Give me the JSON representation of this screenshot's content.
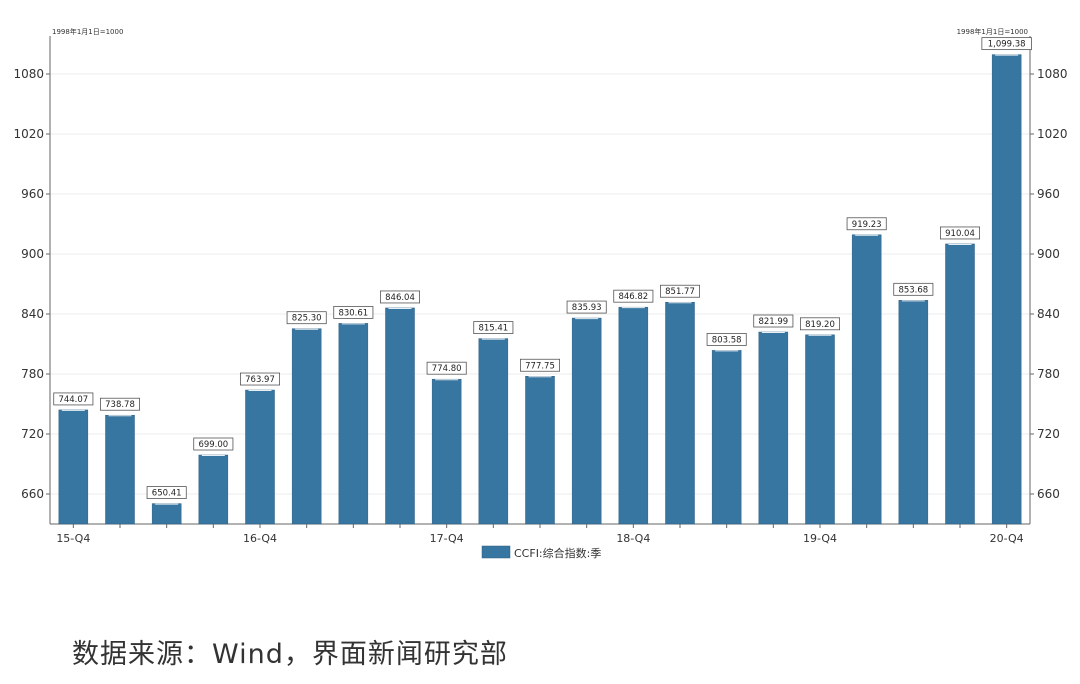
{
  "chart_data": {
    "type": "bar",
    "unit_left": "1998年1月1日=1000",
    "unit_right": "1998年1月1日=1000",
    "categories": [
      "15-Q4",
      "",
      "",
      "",
      "16-Q4",
      "",
      "",
      "",
      "17-Q4",
      "",
      "",
      "",
      "18-Q4",
      "",
      "",
      "",
      "19-Q4",
      "",
      "",
      "",
      "20-Q4"
    ],
    "series": [
      {
        "name": "CCFI:综合指数:季",
        "values": [
          744.07,
          738.78,
          650.41,
          699.0,
          763.97,
          825.3,
          830.61,
          846.04,
          774.8,
          815.41,
          777.75,
          835.93,
          846.82,
          851.77,
          803.58,
          821.99,
          819.2,
          919.23,
          853.68,
          910.04,
          1099.38
        ],
        "labels": [
          "744.07",
          "738.78",
          "650.41",
          "699.00",
          "763.97",
          "825.30",
          "830.61",
          "846.04",
          "774.80",
          "815.41",
          "777.75",
          "835.93",
          "846.82",
          "851.77",
          "803.58",
          "821.99",
          "819.20",
          "919.23",
          "853.68",
          "910.04",
          "1,099.38"
        ]
      }
    ],
    "yticks": [
      660,
      720,
      780,
      840,
      900,
      960,
      1020,
      1080
    ],
    "ylim": [
      630,
      1118
    ],
    "grid": true,
    "legend_position": "bottom-center",
    "colors": {
      "bar": "#3776a1",
      "bar_edge": "#2c5f84",
      "axis": "#666666",
      "grid": "#ececec",
      "label_box": "#ffffff"
    }
  },
  "source": "数据来源：Wind，界面新闻研究部"
}
